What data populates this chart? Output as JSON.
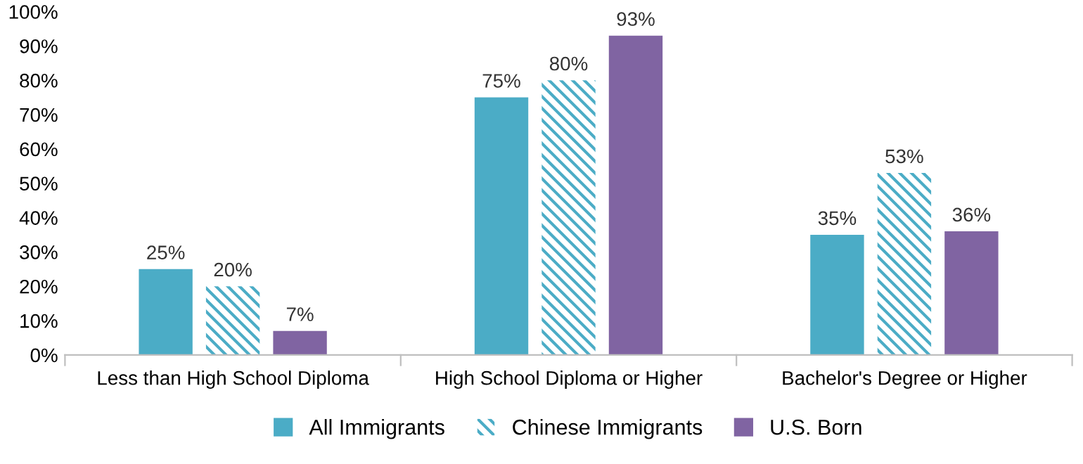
{
  "chart_data": {
    "type": "bar",
    "categories": [
      "Less than High School Diploma",
      "High School Diploma or Higher",
      "Bachelor's Degree or Higher"
    ],
    "series": [
      {
        "name": "All Immigrants",
        "color": "#4bacc6",
        "values": [
          25,
          75,
          35
        ],
        "value_labels": [
          "25%",
          "75%",
          "35%"
        ]
      },
      {
        "name": "Chinese Immigrants",
        "color": "#4bacc6",
        "values": [
          20,
          80,
          53
        ],
        "value_labels": [
          "20%",
          "80%",
          "53%"
        ]
      },
      {
        "name": "U.S. Born",
        "color": "#8064a2",
        "values": [
          7,
          93,
          36
        ],
        "value_labels": [
          "7%",
          "93%",
          "36%"
        ]
      }
    ],
    "ylim": [
      0,
      100
    ],
    "yticks": [
      {
        "value": 0,
        "label": "0%"
      },
      {
        "value": 10,
        "label": "10%"
      },
      {
        "value": 20,
        "label": "20%"
      },
      {
        "value": 30,
        "label": "30%"
      },
      {
        "value": 40,
        "label": "40%"
      },
      {
        "value": 50,
        "label": "50%"
      },
      {
        "value": 60,
        "label": "60%"
      },
      {
        "value": 70,
        "label": "70%"
      },
      {
        "value": 80,
        "label": "80%"
      },
      {
        "value": 90,
        "label": "90%"
      },
      {
        "value": 100,
        "label": "100%"
      }
    ],
    "legend": "bottom"
  }
}
